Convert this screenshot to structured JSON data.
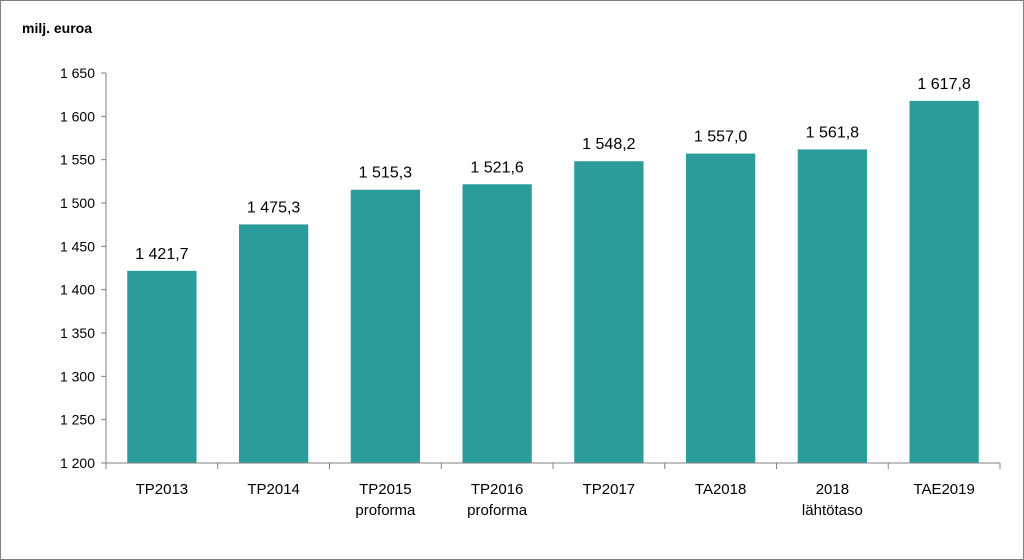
{
  "chart_data": {
    "type": "bar",
    "ylabel": "milj. euroa",
    "ylim": [
      1200,
      1650
    ],
    "yticks": [
      1200,
      1250,
      1300,
      1350,
      1400,
      1450,
      1500,
      1550,
      1600,
      1650
    ],
    "ytick_labels": [
      "1 200",
      "1 250",
      "1 300",
      "1 350",
      "1 400",
      "1 450",
      "1 500",
      "1 550",
      "1 600",
      "1 650"
    ],
    "categories": [
      [
        "TP2013"
      ],
      [
        "TP2014"
      ],
      [
        "TP2015",
        "proforma"
      ],
      [
        "TP2016",
        "proforma"
      ],
      [
        "TP2017"
      ],
      [
        "TA2018"
      ],
      [
        "2018",
        "lähtötaso"
      ],
      [
        "TAE2019"
      ]
    ],
    "values": [
      1421.7,
      1475.3,
      1515.3,
      1521.6,
      1548.2,
      1557.0,
      1561.8,
      1617.8
    ],
    "value_labels": [
      "1 421,7",
      "1 475,3",
      "1 515,3",
      "1 521,6",
      "1 548,2",
      "1 557,0",
      "1 561,8",
      "1 617,8"
    ],
    "bar_color": "#2a9c9c",
    "grid": false,
    "legend": "none"
  }
}
